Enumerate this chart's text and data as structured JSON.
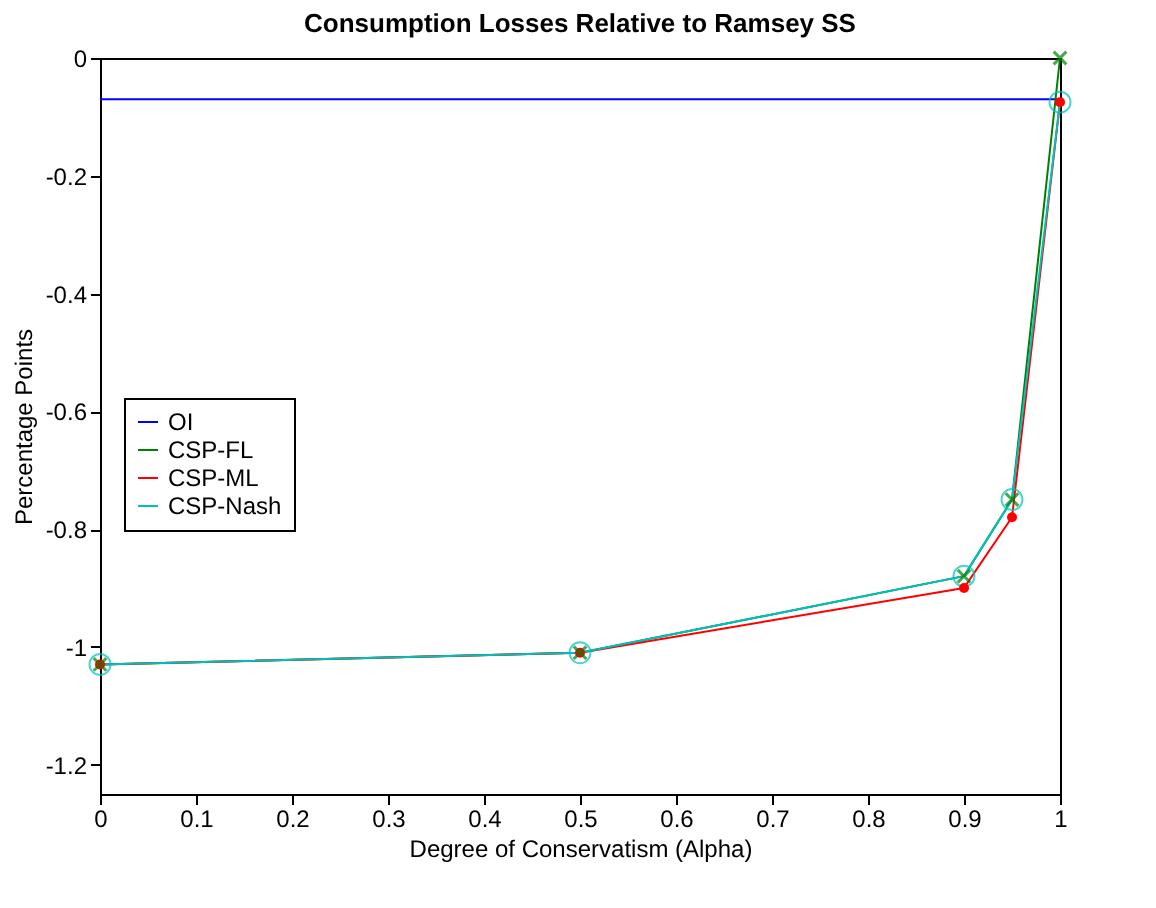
{
  "chart_data": {
    "type": "line",
    "title": "Consumption Losses Relative to Ramsey SS",
    "xlabel": "Degree of Conservatism (Alpha)",
    "ylabel": "Percentage Points",
    "x": [
      0,
      0.5,
      0.9,
      0.95,
      1
    ],
    "series": [
      {
        "name": "OI",
        "color": "#0000ff",
        "x": [
          0,
          1
        ],
        "values": [
          -0.07,
          -0.07
        ],
        "marker": "none"
      },
      {
        "name": "CSP-FL",
        "color": "#008000",
        "values": [
          -1.03,
          -1.01,
          -0.88,
          -0.75,
          0
        ],
        "marker": "cross"
      },
      {
        "name": "CSP-ML",
        "color": "#ff0000",
        "values": [
          -1.03,
          -1.01,
          -0.9,
          -0.78,
          -0.075
        ],
        "marker": "circle"
      },
      {
        "name": "CSP-Nash",
        "color": "#00bfbf",
        "values": [
          -1.03,
          -1.01,
          -0.88,
          -0.75,
          -0.075
        ],
        "marker": "circle"
      }
    ],
    "xlim": [
      0,
      1
    ],
    "xticks": [
      0,
      0.1,
      0.2,
      0.3,
      0.4,
      0.5,
      0.6,
      0.7,
      0.8,
      0.9,
      1
    ],
    "ylim": [
      -1.25,
      0
    ],
    "yticks": [
      0,
      -0.2,
      -0.4,
      -0.6,
      -0.8,
      -1,
      -1.2
    ],
    "grid": false,
    "legend": "left",
    "line_style": "solid"
  }
}
